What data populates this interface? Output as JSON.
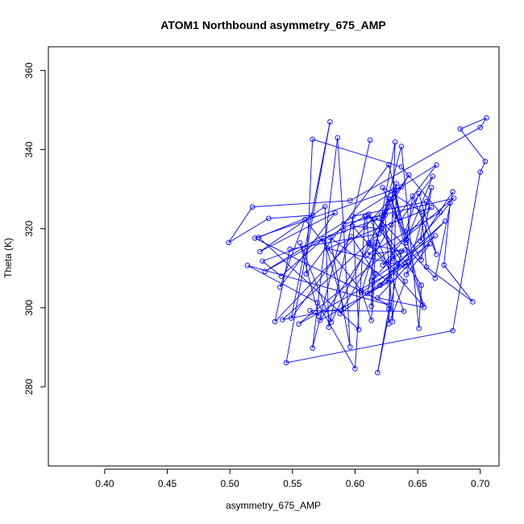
{
  "chart_data": {
    "type": "line",
    "title": "ATOM1 Northbound asymmetry_675_AMP",
    "xlabel": "asymmetry_675_AMP",
    "ylabel": "Theta (K)",
    "xlim": [
      0.355,
      0.715
    ],
    "ylim": [
      260,
      366
    ],
    "x_ticks": [
      0.4,
      0.45,
      0.5,
      0.55,
      0.6,
      0.65,
      0.7
    ],
    "x_tick_labels": [
      "0.40",
      "0.45",
      "0.50",
      "0.55",
      "0.60",
      "0.65",
      "0.70"
    ],
    "y_ticks": [
      280,
      300,
      320,
      340,
      360
    ],
    "y_tick_labels": [
      "280",
      "300",
      "320",
      "340",
      "360"
    ],
    "grid": false,
    "series": [
      {
        "color": "#0000ff",
        "marker": "open-circle",
        "points": [
          [
            0.612,
            342.4
          ],
          [
            0.579,
            295.1
          ],
          [
            0.576,
            325.6
          ],
          [
            0.524,
            314.2
          ],
          [
            0.584,
            324.0
          ],
          [
            0.54,
            305.2
          ],
          [
            0.56,
            322.3
          ],
          [
            0.605,
            304.3
          ],
          [
            0.613,
            296.8
          ],
          [
            0.616,
            308.7
          ],
          [
            0.597,
            318.0
          ],
          [
            0.549,
            297.4
          ],
          [
            0.58,
            347.0
          ],
          [
            0.545,
            286.1
          ],
          [
            0.678,
            294.2
          ],
          [
            0.7,
            334.3
          ],
          [
            0.704,
            337.0
          ],
          [
            0.684,
            345.2
          ],
          [
            0.705,
            348.0
          ],
          [
            0.7,
            345.6
          ],
          [
            0.596,
            327.1
          ],
          [
            0.518,
            325.5
          ],
          [
            0.499,
            316.5
          ],
          [
            0.531,
            322.6
          ],
          [
            0.566,
            323.4
          ],
          [
            0.523,
            317.8
          ],
          [
            0.603,
            294.5
          ],
          [
            0.598,
            323.1
          ],
          [
            0.657,
            326.8
          ],
          [
            0.652,
            316.9
          ],
          [
            0.678,
            329.3
          ],
          [
            0.664,
            307.5
          ],
          [
            0.619,
            322.6
          ],
          [
            0.526,
            311.8
          ],
          [
            0.541,
            308.0
          ],
          [
            0.575,
            317.5
          ],
          [
            0.591,
            299.9
          ],
          [
            0.542,
            297.0
          ],
          [
            0.619,
            318.7
          ],
          [
            0.548,
            314.8
          ],
          [
            0.536,
            296.5
          ],
          [
            0.608,
            320.4
          ],
          [
            0.637,
            330.6
          ],
          [
            0.52,
            317.6
          ],
          [
            0.627,
            300.7
          ],
          [
            0.514,
            310.7
          ],
          [
            0.57,
            301.3
          ],
          [
            0.6,
            284.6
          ],
          [
            0.608,
            323.1
          ],
          [
            0.528,
            309.2
          ],
          [
            0.665,
            336.1
          ],
          [
            0.629,
            321.0
          ],
          [
            0.588,
            298.5
          ],
          [
            0.643,
            311.5
          ],
          [
            0.555,
            295.9
          ],
          [
            0.679,
            327.7
          ],
          [
            0.591,
            321.2
          ],
          [
            0.566,
            289.8
          ],
          [
            0.586,
            343.0
          ],
          [
            0.591,
            319.6
          ],
          [
            0.596,
            290.1
          ],
          [
            0.58,
            317.8
          ],
          [
            0.627,
            306.5
          ],
          [
            0.572,
            296.8
          ],
          [
            0.613,
            315.9
          ],
          [
            0.64,
            306.7
          ],
          [
            0.627,
            296.0
          ],
          [
            0.628,
            307.1
          ],
          [
            0.61,
            303.6
          ],
          [
            0.632,
            341.9
          ],
          [
            0.627,
            299.7
          ],
          [
            0.618,
            283.6
          ],
          [
            0.637,
            314.3
          ],
          [
            0.611,
            316.1
          ],
          [
            0.581,
            296.4
          ],
          [
            0.556,
            316.4
          ],
          [
            0.571,
            297.9
          ],
          [
            0.564,
            299.3
          ],
          [
            0.639,
            299.1
          ],
          [
            0.611,
            323.7
          ],
          [
            0.64,
            310.5
          ],
          [
            0.578,
            315.0
          ],
          [
            0.661,
            325.4
          ],
          [
            0.622,
            310.8
          ],
          [
            0.64,
            314.6
          ],
          [
            0.61,
            313.5
          ],
          [
            0.668,
            324.1
          ],
          [
            0.637,
            335.6
          ],
          [
            0.566,
            342.6
          ],
          [
            0.561,
            308.6
          ],
          [
            0.627,
            336.2
          ],
          [
            0.641,
            317.1
          ],
          [
            0.662,
            333.2
          ],
          [
            0.636,
            322.0
          ],
          [
            0.631,
            329.8
          ],
          [
            0.655,
            300.1
          ],
          [
            0.618,
            302.5
          ],
          [
            0.664,
            318.2
          ],
          [
            0.613,
            306.9
          ],
          [
            0.63,
            312.4
          ],
          [
            0.63,
            313.0
          ],
          [
            0.621,
            323.4
          ],
          [
            0.643,
            333.6
          ],
          [
            0.611,
            316.5
          ],
          [
            0.609,
            323.3
          ],
          [
            0.615,
            322.4
          ],
          [
            0.613,
            300.4
          ],
          [
            0.617,
            316.6
          ],
          [
            0.637,
            340.8
          ],
          [
            0.651,
            294.8
          ],
          [
            0.653,
            305.7
          ],
          [
            0.621,
            320.3
          ],
          [
            0.633,
            331.4
          ],
          [
            0.63,
            296.5
          ],
          [
            0.624,
            323.4
          ],
          [
            0.627,
            327.5
          ],
          [
            0.605,
            303.8
          ],
          [
            0.66,
            316.2
          ],
          [
            0.641,
            308.4
          ],
          [
            0.661,
            330.4
          ],
          [
            0.653,
            312.1
          ],
          [
            0.632,
            323.3
          ],
          [
            0.622,
            330.4
          ],
          [
            0.653,
            324.3
          ],
          [
            0.657,
            310.3
          ],
          [
            0.694,
            301.5
          ],
          [
            0.671,
            310.8
          ],
          [
            0.676,
            326.5
          ],
          [
            0.62,
            305.7
          ],
          [
            0.672,
            321.9
          ],
          [
            0.634,
            311.2
          ],
          [
            0.621,
            320.0
          ],
          [
            0.598,
            320.6
          ],
          [
            0.654,
            300.7
          ],
          [
            0.629,
            327.5
          ],
          [
            0.641,
            316.5
          ],
          [
            0.646,
            328.2
          ],
          [
            0.665,
            313.5
          ],
          [
            0.651,
            328.9
          ],
          [
            0.64,
            319.3
          ]
        ]
      }
    ]
  }
}
